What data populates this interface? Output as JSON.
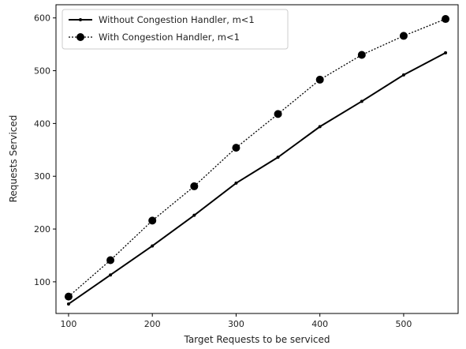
{
  "chart_data": {
    "type": "line",
    "title": "",
    "xlabel": "Target Requests to be serviced",
    "ylabel": "Requests Serviced",
    "xlim": [
      85,
      565
    ],
    "ylim": [
      40,
      625
    ],
    "x_ticks": [
      100,
      200,
      300,
      400,
      500
    ],
    "y_ticks": [
      100,
      200,
      300,
      400,
      500,
      600
    ],
    "grid": false,
    "legend_position": "top-left",
    "x": [
      100,
      150,
      200,
      250,
      300,
      350,
      400,
      450,
      500,
      550
    ],
    "series": [
      {
        "name": "Without Congestion Handler, m<1",
        "values": [
          58,
          113,
          168,
          226,
          287,
          336,
          394,
          442,
          492,
          534
        ],
        "color": "#000000",
        "line_style": "solid",
        "marker": "small-dot"
      },
      {
        "name": "With Congestion Handler, m<1",
        "values": [
          72,
          141,
          216,
          281,
          354,
          418,
          483,
          530,
          566,
          598
        ],
        "color": "#000000",
        "line_style": "dotted",
        "marker": "large-dot"
      }
    ]
  }
}
